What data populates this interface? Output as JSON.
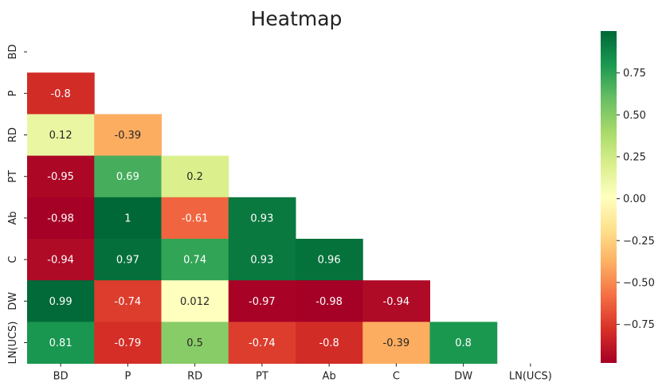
{
  "chart_data": {
    "type": "heatmap",
    "title": "Heatmap",
    "labels": [
      "BD",
      "P",
      "RD",
      "PT",
      "Ab",
      "C",
      "DW",
      "LN(UCS)"
    ],
    "mask": "upper-triangle-including-diagonal",
    "matrix": [
      [
        null,
        null,
        null,
        null,
        null,
        null,
        null,
        null
      ],
      [
        "-0.8",
        null,
        null,
        null,
        null,
        null,
        null,
        null
      ],
      [
        "0.12",
        "-0.39",
        null,
        null,
        null,
        null,
        null,
        null
      ],
      [
        "-0.95",
        "0.69",
        "0.2",
        null,
        null,
        null,
        null,
        null
      ],
      [
        "-0.98",
        "1",
        "-0.61",
        "0.93",
        null,
        null,
        null,
        null
      ],
      [
        "-0.94",
        "0.97",
        "0.74",
        "0.93",
        "0.96",
        null,
        null,
        null
      ],
      [
        "0.99",
        "-0.74",
        "0.012",
        "-0.97",
        "-0.98",
        "-0.94",
        null,
        null
      ],
      [
        "0.81",
        "-0.79",
        "0.5",
        "-0.74",
        "-0.8",
        "-0.39",
        "0.8",
        null
      ]
    ],
    "colormap": "RdYlGn",
    "colorbar": {
      "vmin": -0.98,
      "vmax": 1.0,
      "ticks": [
        "0.75",
        "0.50",
        "0.25",
        "0.00",
        "−0.25",
        "−0.50",
        "−0.75"
      ],
      "tick_values": [
        0.75,
        0.5,
        0.25,
        0.0,
        -0.25,
        -0.5,
        -0.75
      ]
    }
  }
}
